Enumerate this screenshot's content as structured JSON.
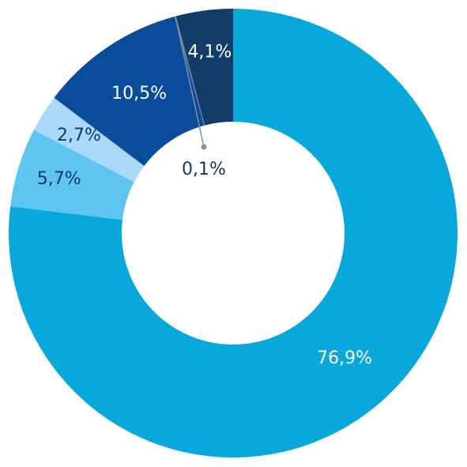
{
  "chart_data": {
    "type": "donut",
    "values": [
      76.9,
      5.7,
      2.7,
      10.5,
      0.1,
      4.1
    ],
    "value_labels": [
      "76,9%",
      "5,7%",
      "2,7%",
      "10,5%",
      "0,1%",
      "4,1%"
    ],
    "colors": [
      "#08a9da",
      "#5ec4f1",
      "#a9d9f6",
      "#0a4c9b",
      "#6f87a6",
      "#133c69"
    ]
  }
}
